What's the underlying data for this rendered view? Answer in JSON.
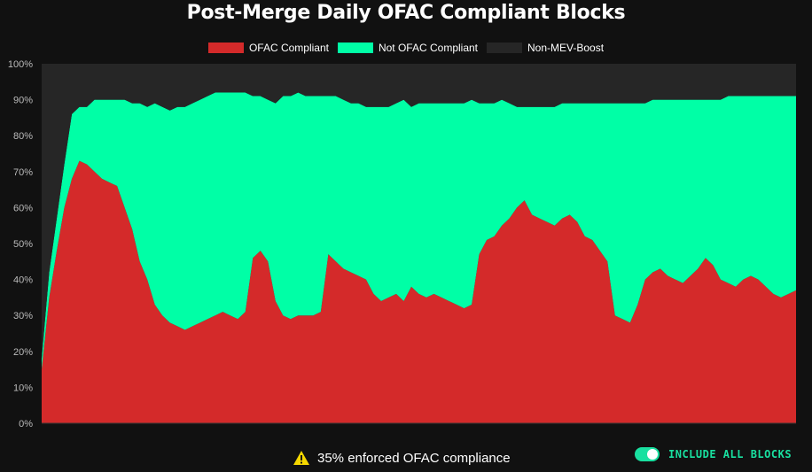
{
  "colors": {
    "ofac": "#d42a2a",
    "not_ofac": "#00ffa6",
    "non_mev": "#262626",
    "accent": "#19e0a0",
    "warning": "#f5d700"
  },
  "chart_data": {
    "type": "area",
    "stacked": true,
    "title": "Post-Merge Daily OFAC Compliant Blocks",
    "xlabel": "",
    "ylabel": "",
    "ylim": [
      0,
      100
    ],
    "y_unit": "%",
    "y_ticks": [
      "0%",
      "10%",
      "20%",
      "30%",
      "40%",
      "50%",
      "60%",
      "70%",
      "80%",
      "90%",
      "100%"
    ],
    "grid": false,
    "legend_position": "top-center",
    "x_index_range": [
      0,
      100
    ],
    "series": [
      {
        "name": "OFAC Compliant",
        "color_key": "ofac",
        "x": [
          0,
          1,
          2,
          3,
          4,
          5,
          6,
          7,
          8,
          9,
          10,
          11,
          12,
          13,
          14,
          15,
          16,
          17,
          18,
          19,
          20,
          21,
          22,
          23,
          24,
          25,
          26,
          27,
          28,
          29,
          30,
          31,
          32,
          33,
          34,
          35,
          36,
          37,
          38,
          39,
          40,
          41,
          42,
          43,
          44,
          45,
          46,
          47,
          48,
          49,
          50,
          51,
          52,
          53,
          54,
          55,
          56,
          57,
          58,
          59,
          60,
          61,
          62,
          63,
          64,
          65,
          66,
          67,
          68,
          69,
          70,
          71,
          72,
          73,
          74,
          75,
          76,
          77,
          78,
          79,
          80,
          81,
          82,
          83,
          84,
          85,
          86,
          87,
          88,
          89,
          90,
          91,
          92,
          93,
          94,
          95,
          96,
          97,
          98,
          99,
          100
        ],
        "values": [
          15,
          35,
          48,
          60,
          68,
          73,
          72,
          70,
          68,
          67,
          66,
          60,
          54,
          45,
          40,
          33,
          30,
          28,
          27,
          26,
          27,
          28,
          29,
          30,
          31,
          30,
          29,
          31,
          46,
          48,
          45,
          34,
          30,
          29,
          30,
          30,
          30,
          31,
          47,
          45,
          43,
          42,
          41,
          40,
          36,
          34,
          35,
          36,
          34,
          38,
          36,
          35,
          36,
          35,
          34,
          33,
          32,
          33,
          47,
          51,
          52,
          55,
          57,
          60,
          62,
          58,
          57,
          56,
          55,
          57,
          58,
          56,
          52,
          51,
          48,
          45,
          30,
          29,
          28,
          33,
          40,
          42,
          43,
          41,
          40,
          39,
          41,
          43,
          46,
          44,
          40,
          39,
          38,
          40,
          41,
          40,
          38,
          36,
          35,
          36,
          37
        ]
      },
      {
        "name": "Not OFAC Compliant",
        "color_key": "not_ofac",
        "x": [
          0,
          1,
          2,
          3,
          4,
          5,
          6,
          7,
          8,
          9,
          10,
          11,
          12,
          13,
          14,
          15,
          16,
          17,
          18,
          19,
          20,
          21,
          22,
          23,
          24,
          25,
          26,
          27,
          28,
          29,
          30,
          31,
          32,
          33,
          34,
          35,
          36,
          37,
          38,
          39,
          40,
          41,
          42,
          43,
          44,
          45,
          46,
          47,
          48,
          49,
          50,
          51,
          52,
          53,
          54,
          55,
          56,
          57,
          58,
          59,
          60,
          61,
          62,
          63,
          64,
          65,
          66,
          67,
          68,
          69,
          70,
          71,
          72,
          73,
          74,
          75,
          76,
          77,
          78,
          79,
          80,
          81,
          82,
          83,
          84,
          85,
          86,
          87,
          88,
          89,
          90,
          91,
          92,
          93,
          94,
          95,
          96,
          97,
          98,
          99,
          100
        ],
        "values": [
          3,
          7,
          9,
          12,
          18,
          15,
          16,
          20,
          22,
          23,
          24,
          30,
          35,
          44,
          48,
          56,
          58,
          59,
          61,
          62,
          62,
          62,
          62,
          62,
          61,
          62,
          63,
          61,
          45,
          43,
          45,
          55,
          61,
          62,
          62,
          61,
          61,
          60,
          44,
          46,
          47,
          47,
          48,
          48,
          52,
          54,
          53,
          53,
          56,
          50,
          53,
          54,
          53,
          54,
          55,
          56,
          57,
          57,
          42,
          38,
          37,
          35,
          32,
          28,
          26,
          30,
          31,
          32,
          33,
          32,
          31,
          33,
          37,
          38,
          41,
          44,
          59,
          60,
          61,
          56,
          49,
          48,
          47,
          49,
          50,
          51,
          49,
          47,
          44,
          46,
          50,
          52,
          53,
          51,
          50,
          51,
          53,
          55,
          56,
          55,
          54
        ]
      },
      {
        "name": "Non-MEV-Boost",
        "color_key": "non_mev",
        "x": [
          0,
          1,
          2,
          3,
          4,
          5,
          6,
          7,
          8,
          9,
          10,
          11,
          12,
          13,
          14,
          15,
          16,
          17,
          18,
          19,
          20,
          21,
          22,
          23,
          24,
          25,
          26,
          27,
          28,
          29,
          30,
          31,
          32,
          33,
          34,
          35,
          36,
          37,
          38,
          39,
          40,
          41,
          42,
          43,
          44,
          45,
          46,
          47,
          48,
          49,
          50,
          51,
          52,
          53,
          54,
          55,
          56,
          57,
          58,
          59,
          60,
          61,
          62,
          63,
          64,
          65,
          66,
          67,
          68,
          69,
          70,
          71,
          72,
          73,
          74,
          75,
          76,
          77,
          78,
          79,
          80,
          81,
          82,
          83,
          84,
          85,
          86,
          87,
          88,
          89,
          90,
          91,
          92,
          93,
          94,
          95,
          96,
          97,
          98,
          99,
          100
        ],
        "values": [
          82,
          58,
          43,
          28,
          14,
          12,
          12,
          10,
          10,
          10,
          10,
          10,
          11,
          11,
          12,
          11,
          12,
          13,
          12,
          12,
          11,
          10,
          9,
          8,
          8,
          8,
          8,
          8,
          9,
          9,
          10,
          11,
          9,
          9,
          8,
          9,
          9,
          9,
          9,
          9,
          10,
          11,
          11,
          12,
          12,
          12,
          12,
          11,
          10,
          12,
          11,
          11,
          11,
          11,
          11,
          11,
          11,
          10,
          11,
          11,
          11,
          10,
          11,
          12,
          12,
          12,
          12,
          12,
          12,
          11,
          11,
          11,
          11,
          11,
          11,
          11,
          11,
          11,
          11,
          11,
          11,
          10,
          10,
          10,
          10,
          10,
          10,
          10,
          10,
          10,
          10,
          9,
          9,
          9,
          9,
          9,
          9,
          9,
          9,
          9,
          9
        ]
      }
    ]
  },
  "footer": {
    "warning_text": "35% enforced OFAC compliance",
    "toggle_label": "INCLUDE ALL BLOCKS",
    "toggle_on": true
  }
}
